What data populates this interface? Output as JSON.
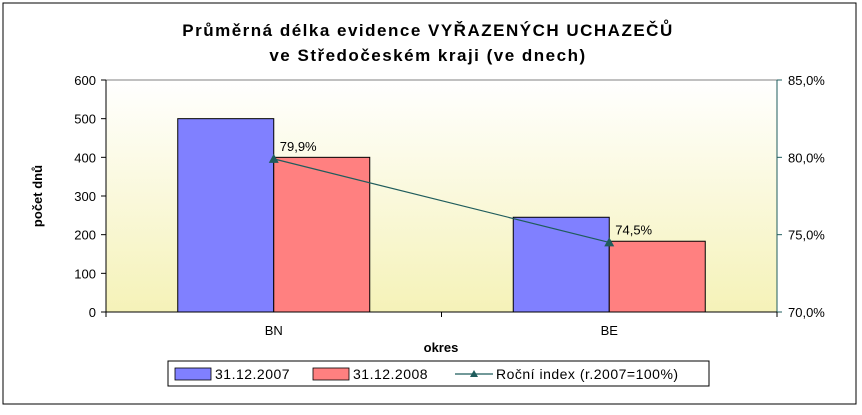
{
  "chart_data": {
    "type": "bar",
    "title_line1": "Průměrná délka evidence VYŘAZENÝCH UCHAZEČŮ",
    "title_line2": "ve Středočeském kraji (ve dnech)",
    "xlabel": "okres",
    "ylabel": "počet dnů",
    "categories": [
      "BN",
      "BE"
    ],
    "series": [
      {
        "name": "31.12.2007",
        "values": [
          500,
          245
        ],
        "color": "#8080ff"
      },
      {
        "name": "31.12.2008",
        "values": [
          400,
          183
        ],
        "color": "#ff8080"
      }
    ],
    "line_series": {
      "name": "Roční index (r.2007=100%)",
      "values": [
        79.9,
        74.5
      ],
      "labels": [
        "79,9%",
        "74,5%"
      ],
      "color": "#1f5c5c",
      "axis": "secondary"
    },
    "ylim": [
      0,
      600
    ],
    "yticks": [
      "0",
      "100",
      "200",
      "300",
      "400",
      "500",
      "600"
    ],
    "y2lim": [
      70,
      85
    ],
    "y2ticks": [
      "70,0%",
      "75,0%",
      "80,0%",
      "85,0%"
    ],
    "legend_position": "bottom",
    "plot_background": "gradient-white-to-light-yellow",
    "gridlines": false
  }
}
